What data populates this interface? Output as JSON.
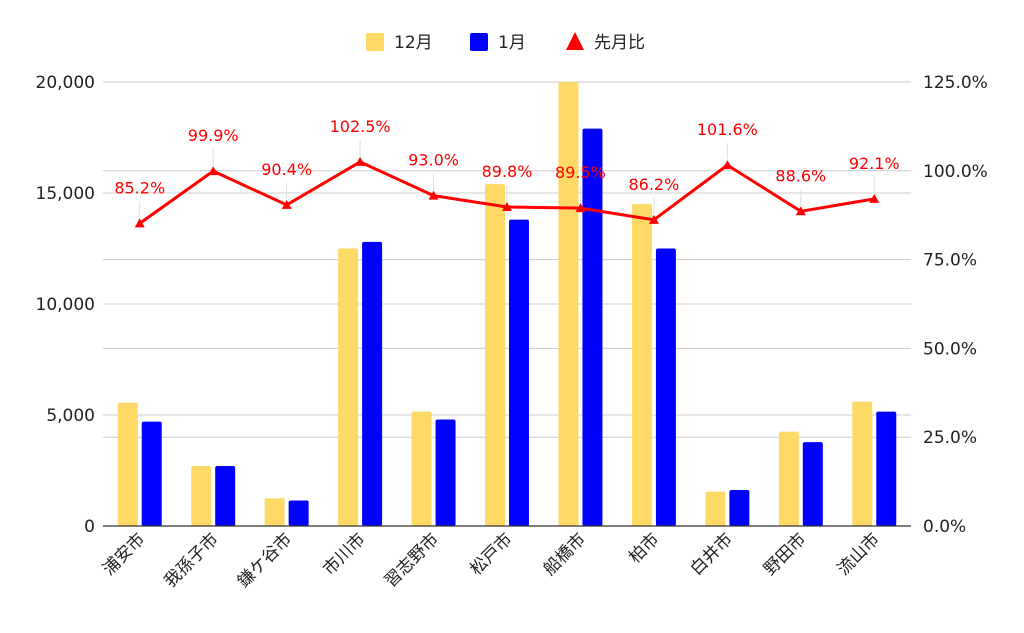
{
  "chart_data": {
    "type": "bar",
    "categories": [
      "浦安市",
      "我孫子市",
      "鎌ケ谷市",
      "市川市",
      "習志野市",
      "松戸市",
      "船橋市",
      "柏市",
      "白井市",
      "野田市",
      "流山市"
    ],
    "series": [
      {
        "name": "12月",
        "kind": "bar",
        "axis": "left",
        "color": "#ffd966",
        "values": [
          5550,
          2700,
          1250,
          12500,
          5150,
          15400,
          20000,
          14500,
          1550,
          4250,
          5600
        ]
      },
      {
        "name": "1月",
        "kind": "bar",
        "axis": "left",
        "color": "#0000ff",
        "values": [
          4700,
          2700,
          1150,
          12800,
          4800,
          13800,
          17900,
          12500,
          1620,
          3780,
          5150
        ]
      },
      {
        "name": "先月比",
        "kind": "line",
        "axis": "right",
        "color": "#ff0000",
        "values": [
          85.2,
          99.9,
          90.4,
          102.5,
          93.0,
          89.8,
          89.5,
          86.2,
          101.6,
          88.6,
          92.1
        ],
        "labels": [
          "85.2%",
          "99.9%",
          "90.4%",
          "102.5%",
          "93.0%",
          "89.8%",
          "89.5%",
          "86.2%",
          "101.6%",
          "88.6%",
          "92.1%"
        ]
      }
    ],
    "ylim_left": [
      0,
      20000
    ],
    "ylim_right": [
      0,
      125
    ],
    "yticks_left": [
      "0",
      "5,000",
      "10,000",
      "15,000",
      "20,000"
    ],
    "yticks_right": [
      "0.0%",
      "25.0%",
      "50.0%",
      "75.0%",
      "100.0%",
      "125.0%"
    ],
    "legend_position": "top",
    "grid": true
  }
}
